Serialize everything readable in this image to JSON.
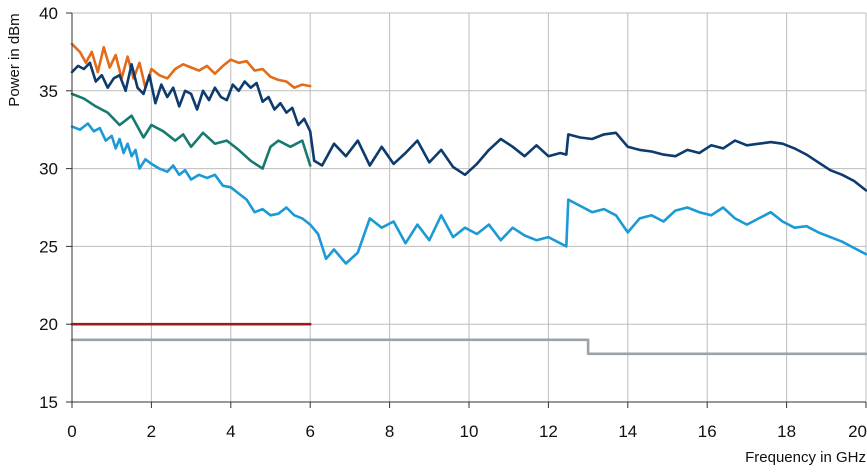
{
  "chart_data": {
    "type": "line",
    "title": "",
    "xlabel": "Frequency in GHz",
    "ylabel": "Power in dBm",
    "xlim": [
      0,
      20
    ],
    "ylim": [
      15,
      40
    ],
    "xticks": [
      0,
      2,
      4,
      6,
      8,
      10,
      12,
      14,
      16,
      18,
      20
    ],
    "yticks": [
      15,
      20,
      25,
      30,
      35,
      40
    ],
    "grid": true,
    "legend": "none",
    "series": [
      {
        "color": "#E36C1A",
        "x": [
          0,
          0.2,
          0.35,
          0.5,
          0.65,
          0.8,
          0.95,
          1.1,
          1.25,
          1.4,
          1.55,
          1.7,
          1.85,
          2.0,
          2.2,
          2.4,
          2.6,
          2.8,
          3.0,
          3.2,
          3.4,
          3.6,
          3.8,
          4.0,
          4.2,
          4.4,
          4.6,
          4.8,
          5.0,
          5.2,
          5.4,
          5.6,
          5.8,
          6.0
        ],
        "y": [
          38.0,
          37.5,
          36.8,
          37.5,
          36.2,
          37.8,
          36.5,
          37.3,
          35.8,
          37.2,
          35.8,
          36.8,
          35.2,
          36.4,
          36.0,
          35.8,
          36.4,
          36.7,
          36.5,
          36.3,
          36.6,
          36.1,
          36.6,
          37.0,
          36.8,
          36.9,
          36.3,
          36.4,
          35.9,
          35.7,
          35.6,
          35.2,
          35.4,
          35.3
        ]
      },
      {
        "color": "#0D3B6E",
        "x": [
          0,
          0.15,
          0.3,
          0.45,
          0.6,
          0.75,
          0.9,
          1.05,
          1.2,
          1.35,
          1.5,
          1.65,
          1.8,
          1.95,
          2.1,
          2.25,
          2.4,
          2.55,
          2.7,
          2.85,
          3.0,
          3.15,
          3.3,
          3.45,
          3.6,
          3.75,
          3.9,
          4.05,
          4.2,
          4.35,
          4.5,
          4.65,
          4.8,
          4.95,
          5.1,
          5.25,
          5.4,
          5.55,
          5.7,
          5.85,
          6.0,
          6.1,
          6.3,
          6.6,
          6.9,
          7.2,
          7.5,
          7.8,
          8.1,
          8.4,
          8.7,
          9.0,
          9.3,
          9.6,
          9.9,
          10.2,
          10.5,
          10.8,
          11.1,
          11.4,
          11.7,
          12.0,
          12.3,
          12.45,
          12.5,
          12.8,
          13.1,
          13.4,
          13.7,
          14.0,
          14.3,
          14.6,
          14.9,
          15.2,
          15.5,
          15.8,
          16.1,
          16.4,
          16.7,
          17.0,
          17.3,
          17.6,
          17.9,
          18.2,
          18.5,
          18.8,
          19.1,
          19.4,
          19.7,
          20.0
        ],
        "y": [
          36.2,
          36.6,
          36.4,
          36.8,
          35.6,
          36.0,
          35.2,
          35.8,
          36.0,
          35.0,
          36.7,
          35.2,
          34.8,
          36.0,
          34.2,
          35.4,
          34.6,
          35.2,
          34.0,
          35.0,
          34.8,
          33.8,
          35.0,
          34.4,
          35.2,
          34.6,
          34.4,
          35.4,
          35.0,
          35.6,
          35.2,
          35.5,
          34.3,
          34.6,
          33.8,
          34.2,
          33.6,
          33.9,
          32.8,
          33.2,
          32.4,
          30.5,
          30.2,
          31.6,
          30.8,
          31.8,
          30.2,
          31.4,
          30.3,
          31.0,
          31.8,
          30.4,
          31.2,
          30.1,
          29.6,
          30.3,
          31.2,
          31.9,
          31.4,
          30.8,
          31.5,
          30.8,
          31.0,
          30.9,
          32.2,
          32.0,
          31.9,
          32.2,
          32.3,
          31.4,
          31.2,
          31.1,
          30.9,
          30.8,
          31.2,
          31.0,
          31.5,
          31.3,
          31.8,
          31.5,
          31.6,
          31.7,
          31.6,
          31.3,
          30.9,
          30.4,
          29.9,
          29.6,
          29.2,
          28.6
        ]
      },
      {
        "color": "#167A6E",
        "x": [
          0,
          0.3,
          0.6,
          0.9,
          1.2,
          1.5,
          1.8,
          2.0,
          2.3,
          2.6,
          2.8,
          3.0,
          3.3,
          3.6,
          3.9,
          4.2,
          4.5,
          4.8,
          5.0,
          5.2,
          5.5,
          5.8,
          6.0
        ],
        "y": [
          34.8,
          34.5,
          34.0,
          33.6,
          32.8,
          33.4,
          32.0,
          32.8,
          32.4,
          31.8,
          32.2,
          31.4,
          32.3,
          31.6,
          31.8,
          31.2,
          30.5,
          30.0,
          31.4,
          31.8,
          31.4,
          31.8,
          30.2
        ]
      },
      {
        "color": "#1B9AD6",
        "x": [
          0,
          0.2,
          0.4,
          0.55,
          0.7,
          0.85,
          1.0,
          1.1,
          1.2,
          1.3,
          1.4,
          1.5,
          1.6,
          1.7,
          1.85,
          2.0,
          2.2,
          2.4,
          2.55,
          2.7,
          2.85,
          3.0,
          3.2,
          3.4,
          3.6,
          3.8,
          4.0,
          4.2,
          4.4,
          4.6,
          4.8,
          5.0,
          5.2,
          5.4,
          5.6,
          5.8,
          6.0,
          6.2,
          6.4,
          6.6,
          6.9,
          7.2,
          7.5,
          7.8,
          8.1,
          8.4,
          8.7,
          9.0,
          9.3,
          9.6,
          9.9,
          10.2,
          10.5,
          10.8,
          11.1,
          11.4,
          11.7,
          12.0,
          12.3,
          12.45,
          12.5,
          12.8,
          13.1,
          13.4,
          13.7,
          14.0,
          14.3,
          14.6,
          14.9,
          15.2,
          15.5,
          15.8,
          16.1,
          16.4,
          16.7,
          17.0,
          17.3,
          17.6,
          17.9,
          18.2,
          18.5,
          18.8,
          19.1,
          19.4,
          19.7,
          20.0
        ],
        "y": [
          32.7,
          32.5,
          32.9,
          32.4,
          32.6,
          31.8,
          32.1,
          31.3,
          31.9,
          31.0,
          31.6,
          30.8,
          31.2,
          30.0,
          30.6,
          30.3,
          30.0,
          29.8,
          30.2,
          29.6,
          29.9,
          29.3,
          29.6,
          29.4,
          29.6,
          28.9,
          28.8,
          28.4,
          28.0,
          27.2,
          27.4,
          27.0,
          27.1,
          27.5,
          27.0,
          26.8,
          26.4,
          25.8,
          24.2,
          24.8,
          23.9,
          24.6,
          26.8,
          26.2,
          26.6,
          25.2,
          26.4,
          25.4,
          27.0,
          25.6,
          26.2,
          25.8,
          26.4,
          25.4,
          26.2,
          25.7,
          25.4,
          25.6,
          25.2,
          25.0,
          28.0,
          27.6,
          27.2,
          27.4,
          27.0,
          25.9,
          26.8,
          27.0,
          26.6,
          27.3,
          27.5,
          27.2,
          27.0,
          27.5,
          26.8,
          26.4,
          26.8,
          27.2,
          26.6,
          26.2,
          26.3,
          25.9,
          25.6,
          25.3,
          24.9,
          24.5
        ]
      },
      {
        "color": "#9C1B22",
        "x": [
          0,
          6
        ],
        "y": [
          20.0,
          20.0
        ]
      },
      {
        "color": "#9AA3AB",
        "x": [
          0,
          13,
          13,
          20
        ],
        "y": [
          19.0,
          19.0,
          18.1,
          18.1
        ]
      }
    ]
  },
  "colors": {
    "grid": "#BDBDBD",
    "axis": "#333333",
    "text": "#111111"
  }
}
